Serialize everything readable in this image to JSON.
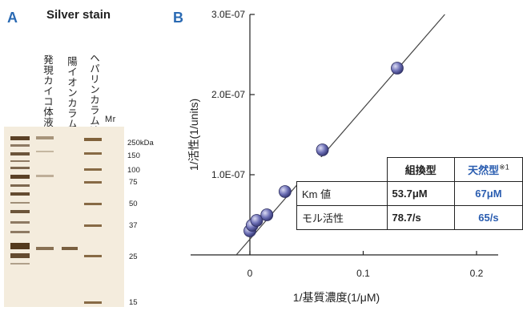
{
  "panel_a": {
    "letter": "A",
    "title": "Silver stain",
    "lanes": [
      "発現カイコ体液",
      "陽イオンカラム溶出",
      "ヘパリンカラム溶出",
      "Mr"
    ],
    "markers": {
      "unit": "250kDa",
      "values": [
        "150",
        "100",
        "75",
        "50",
        "37",
        "25",
        "15"
      ]
    }
  },
  "panel_b": {
    "letter": "B",
    "table": {
      "headers": [
        "組換型",
        "天然型"
      ],
      "note_mark": "※1",
      "rows": [
        {
          "label": "Km 値",
          "recombinant": "53.7μM",
          "natural": "67μM"
        },
        {
          "label": "モル活性",
          "recombinant": "78.7/s",
          "natural": "65/s"
        }
      ]
    }
  },
  "chart_data": {
    "type": "scatter",
    "xlabel": "1/基質濃度(1/μM)",
    "ylabel": "1/活性(1/units)",
    "x_ticks": [
      "0",
      "0.1",
      "0.2"
    ],
    "y_ticks": [
      "1.0E-07",
      "2.0E-07",
      "3.0E-07"
    ],
    "xlim": [
      -0.025,
      0.2
    ],
    "ylim": [
      0,
      3e-07
    ],
    "points": [
      {
        "x": 0.0,
        "y": 3e-08
      },
      {
        "x": 0.002,
        "y": 3.7e-08
      },
      {
        "x": 0.006,
        "y": 4.3e-08
      },
      {
        "x": 0.015,
        "y": 5e-08
      },
      {
        "x": 0.031,
        "y": 7.9e-08
      },
      {
        "x": 0.064,
        "y": 1.31e-07
      },
      {
        "x": 0.13,
        "y": 2.33e-07
      }
    ],
    "fit_line": {
      "x": [
        -0.012,
        0.172
      ],
      "y": [
        0.0,
        3e-07
      ]
    },
    "point_color": "#6c6fb5",
    "grid": false
  }
}
